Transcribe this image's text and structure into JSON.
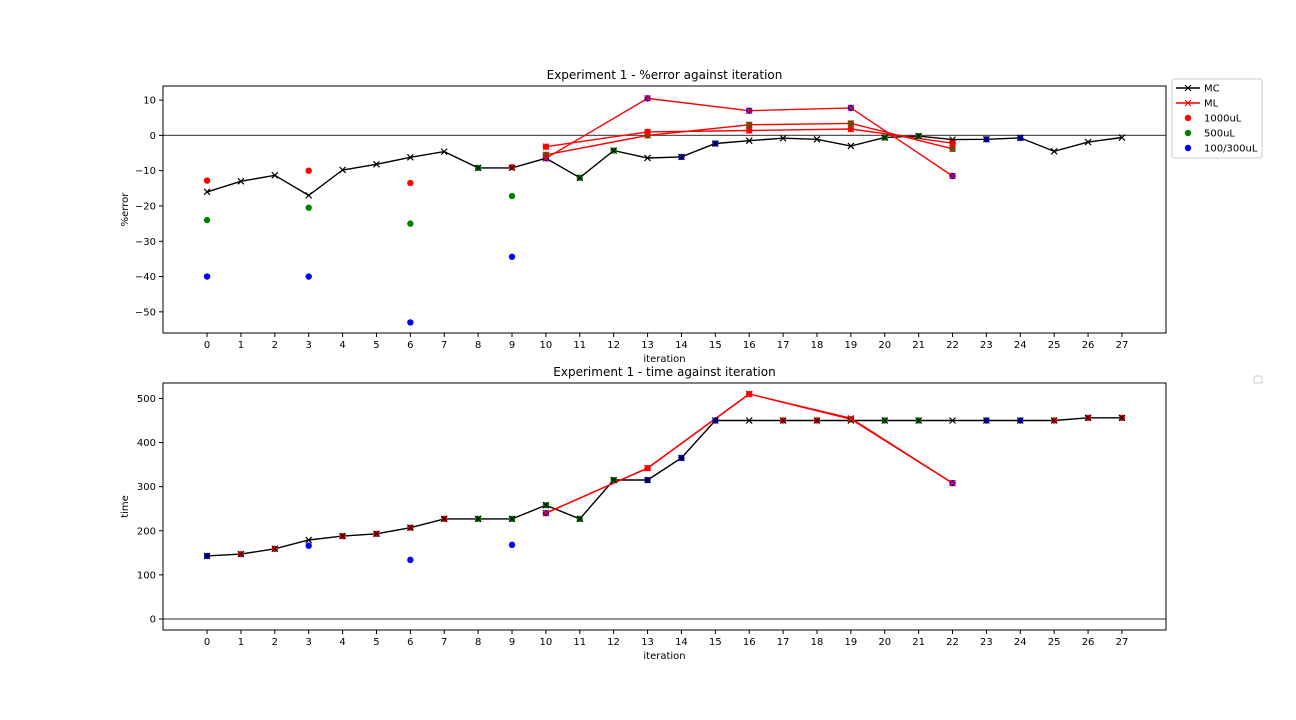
{
  "chart_data": [
    {
      "type": "line",
      "title": "Experiment 1 - %error against iteration",
      "xlabel": "iteration",
      "ylabel": "%error",
      "xlim": [
        -1.3,
        28.3
      ],
      "ylim": [
        -56,
        14
      ],
      "xticks": [
        0,
        1,
        2,
        3,
        4,
        5,
        6,
        7,
        8,
        9,
        10,
        11,
        12,
        13,
        14,
        15,
        16,
        17,
        18,
        19,
        20,
        21,
        22,
        23,
        24,
        25,
        26,
        27
      ],
      "yticks": [
        10,
        0,
        -10,
        -20,
        -30,
        -40,
        -50
      ],
      "ytick_labels": [
        "10",
        "0",
        "−10",
        "−20",
        "−30",
        "−40",
        "−50"
      ],
      "hline": 0,
      "legend": {
        "placement": "outside-right",
        "entries": [
          "MC",
          "ML",
          "1000uL",
          "500uL",
          "100/300uL"
        ]
      },
      "series": [
        {
          "name": "MC",
          "kind": "line",
          "color": "#000000",
          "marker": "x",
          "x": [
            0,
            1,
            2,
            3,
            4,
            5,
            6,
            7,
            8,
            9,
            10,
            11,
            12,
            13,
            14,
            15,
            16,
            17,
            18,
            19,
            20,
            21,
            22,
            23,
            24,
            25,
            26,
            27
          ],
          "y": [
            -16,
            -13,
            -11.3,
            -17,
            -9.8,
            -8.2,
            -6.2,
            -4.6,
            -9.2,
            -9.2,
            -6.5,
            -12,
            -4.3,
            -6.4,
            -6.1,
            -2.3,
            -1.5,
            -0.8,
            -1.1,
            -3,
            -0.6,
            -0.2,
            -1.2,
            -1.1,
            -0.7,
            -4.5,
            -1.9,
            -0.6
          ]
        },
        {
          "name": "ML",
          "kind": "line",
          "color": "#ff0000",
          "marker": "x",
          "segments": [
            {
              "x": [
                10,
                13,
                16,
                19,
                22
              ],
              "y": [
                -6.5,
                10.5,
                7,
                7.8,
                -11.5
              ]
            },
            {
              "x": [
                10,
                13,
                16,
                19,
                22
              ],
              "y": [
                -5.5,
                0,
                3,
                3.4,
                -3.8
              ]
            },
            {
              "x": [
                10,
                13,
                16,
                19,
                22
              ],
              "y": [
                -3.2,
                1,
                1.4,
                1.8,
                -2.2
              ]
            }
          ]
        },
        {
          "name": "1000uL",
          "kind": "scatter",
          "color": "#ff0000",
          "x": [
            0,
            3,
            6,
            9,
            10,
            13,
            16,
            19,
            22
          ],
          "y": [
            -12.8,
            -10,
            -13.5,
            -9,
            -3.2,
            1,
            1.4,
            1.8,
            -2.2
          ]
        },
        {
          "name": "500uL",
          "kind": "scatter",
          "color": "#008000",
          "x": [
            0,
            3,
            6,
            9,
            10,
            13,
            16,
            19,
            22,
            8,
            11,
            12,
            20,
            21
          ],
          "y": [
            -24,
            -20.5,
            -25,
            -17.2,
            -5.5,
            0,
            3,
            3.4,
            -3.8,
            -9.2,
            -12,
            -4.3,
            -0.6,
            -0.2
          ]
        },
        {
          "name": "100/300uL",
          "kind": "scatter",
          "color": "#0000ff",
          "x": [
            0,
            3,
            6,
            9,
            10,
            13,
            16,
            19,
            22,
            14,
            15,
            23,
            24
          ],
          "y": [
            -40,
            -40,
            -53,
            -34.4,
            -6.5,
            10.5,
            7,
            7.8,
            -11.5,
            -6.1,
            -2.3,
            -1.1,
            -0.7
          ]
        }
      ]
    },
    {
      "type": "line",
      "title": "Experiment 1 - time against iteration",
      "xlabel": "iteration",
      "ylabel": "time",
      "xlim": [
        -1.3,
        28.3
      ],
      "ylim": [
        -25,
        535
      ],
      "xticks": [
        0,
        1,
        2,
        3,
        4,
        5,
        6,
        7,
        8,
        9,
        10,
        11,
        12,
        13,
        14,
        15,
        16,
        17,
        18,
        19,
        20,
        21,
        22,
        23,
        24,
        25,
        26,
        27
      ],
      "yticks": [
        0,
        100,
        200,
        300,
        400,
        500
      ],
      "hline": 0,
      "legend": {
        "placement": "outside-right",
        "entries": []
      },
      "series": [
        {
          "name": "MC",
          "kind": "line",
          "color": "#000000",
          "marker": "x",
          "x": [
            0,
            1,
            2,
            3,
            4,
            5,
            6,
            7,
            8,
            9,
            10,
            11,
            12,
            13,
            14,
            15,
            16,
            17,
            18,
            19,
            20,
            21,
            22,
            23,
            24,
            25,
            26,
            27
          ],
          "y": [
            143,
            147,
            159,
            179,
            188,
            193,
            207,
            227,
            227,
            227,
            258,
            227,
            315,
            315,
            365,
            450,
            450,
            450,
            450,
            450,
            450,
            450,
            450,
            450,
            450,
            450,
            456,
            456
          ]
        },
        {
          "name": "ML",
          "kind": "line",
          "color": "#ff0000",
          "marker": "x",
          "segments": [
            {
              "x": [
                10,
                13,
                16,
                19,
                22
              ],
              "y": [
                240,
                342,
                510,
                455,
                308
              ]
            },
            {
              "x": [
                10,
                13,
                16,
                19,
                22
              ],
              "y": [
                240,
                342,
                510,
                453,
                308
              ]
            }
          ]
        },
        {
          "name": "1000uL",
          "kind": "scatter",
          "color": "#ff0000",
          "x": [
            1,
            2,
            4,
            5,
            6,
            7,
            13,
            16,
            17,
            18,
            25,
            26,
            27
          ],
          "y": [
            147,
            159,
            188,
            193,
            207,
            227,
            342,
            510,
            450,
            450,
            450,
            456,
            456
          ]
        },
        {
          "name": "500uL",
          "kind": "scatter",
          "color": "#008000",
          "x": [
            8,
            9,
            10,
            11,
            12,
            19,
            20,
            21
          ],
          "y": [
            227,
            227,
            258,
            227,
            315,
            453,
            450,
            450
          ]
        },
        {
          "name": "100/300uL",
          "kind": "scatter",
          "color": "#0000ff",
          "x": [
            0,
            3,
            6,
            9,
            10,
            13,
            14,
            15,
            22,
            23,
            24
          ],
          "y": [
            143,
            166,
            134,
            168,
            240,
            315,
            365,
            450,
            308,
            450,
            450
          ]
        }
      ]
    }
  ]
}
